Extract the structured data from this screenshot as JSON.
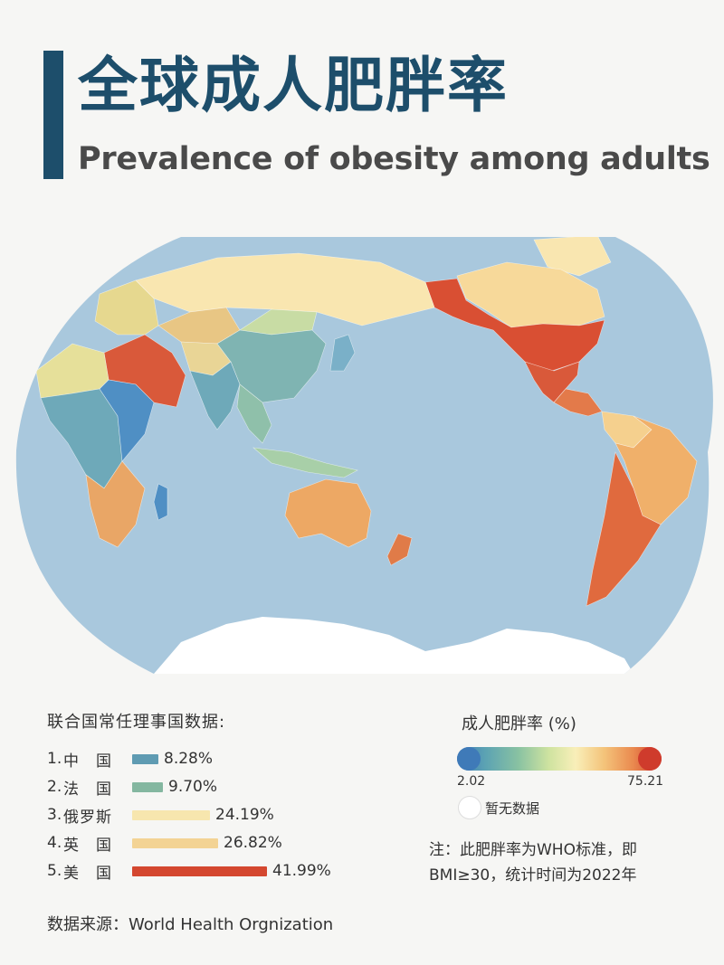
{
  "title": {
    "zh": "全球成人肥胖率",
    "en": "Prevalence of obesity among adults"
  },
  "map": {
    "name": "World map of adult obesity prevalence",
    "colors": {
      "ocean": "#a9c8dd",
      "antarctica": "#ffffff"
    },
    "regions": [
      {
        "name": "Alaska / USA",
        "color": "#d94f33"
      },
      {
        "name": "Canada",
        "color": "#f7d99a"
      },
      {
        "name": "Greenland",
        "color": "#f9e6b0"
      },
      {
        "name": "Mexico",
        "color": "#d9593a"
      },
      {
        "name": "Central America",
        "color": "#e37a4a"
      },
      {
        "name": "South America north",
        "color": "#f5d08e"
      },
      {
        "name": "Brazil",
        "color": "#f0b06a"
      },
      {
        "name": "Argentina / Chile",
        "color": "#e06a3e"
      },
      {
        "name": "Russia",
        "color": "#f9e6b0"
      },
      {
        "name": "Europe",
        "color": "#e6d88f"
      },
      {
        "name": "Middle East",
        "color": "#d9593a"
      },
      {
        "name": "North Africa",
        "color": "#e6e09a"
      },
      {
        "name": "Central Africa",
        "color": "#6ea9b9"
      },
      {
        "name": "East Africa",
        "color": "#4f8fc4"
      },
      {
        "name": "Southern Africa",
        "color": "#e9a666"
      },
      {
        "name": "Madagascar",
        "color": "#4f8fc4"
      },
      {
        "name": "India",
        "color": "#6ea9b9"
      },
      {
        "name": "China",
        "color": "#7fb4b2"
      },
      {
        "name": "Mongolia",
        "color": "#c8dca4"
      },
      {
        "name": "Japan",
        "color": "#7ab0c8"
      },
      {
        "name": "Southeast Asia",
        "color": "#8fc0aa"
      },
      {
        "name": "Indonesia",
        "color": "#a8cfa8"
      },
      {
        "name": "Australia",
        "color": "#eda864"
      },
      {
        "name": "New Zealand",
        "color": "#e07b48"
      },
      {
        "name": "Central Asia",
        "color": "#e9d596"
      },
      {
        "name": "Kazakhstan",
        "color": "#e8c684"
      }
    ]
  },
  "ranking": {
    "title": "联合国常任理事国数据:",
    "items": [
      {
        "num": "1.",
        "name": "中　国",
        "value": "8.28%",
        "percent": 8.28,
        "color": "#5f9bb2"
      },
      {
        "num": "2.",
        "name": "法　国",
        "value": "9.70%",
        "percent": 9.7,
        "color": "#84b7a0"
      },
      {
        "num": "3.",
        "name": "俄罗斯",
        "value": "24.19%",
        "percent": 24.19,
        "color": "#f7e6ae"
      },
      {
        "num": "4.",
        "name": "英　国",
        "value": "26.82%",
        "percent": 26.82,
        "color": "#f3d394"
      },
      {
        "num": "5.",
        "name": "美　国",
        "value": "41.99%",
        "percent": 41.99,
        "color": "#d4472f"
      }
    ]
  },
  "legend": {
    "title": "成人肥胖率 (%)",
    "min": "2.02",
    "max": "75.21",
    "min_color": "#3f7ab8",
    "max_color": "#cf3b2c",
    "no_data": "暂无数据"
  },
  "note": {
    "line1": "注：此肥胖率为WHO标准，即",
    "line2": "BMI≥30，统计时间为2022年"
  },
  "source": "数据来源：World Health Orgnization"
}
